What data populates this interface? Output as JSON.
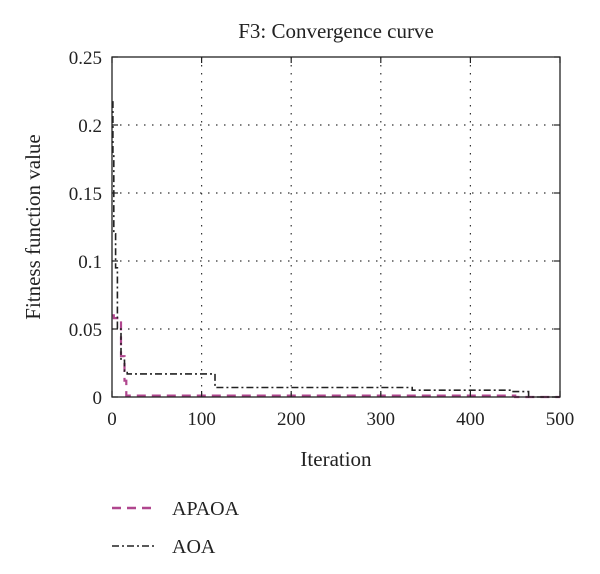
{
  "chart_data": {
    "type": "line",
    "title": "F3: Convergence curve",
    "xlabel": "Iteration",
    "ylabel": "Fitness function value",
    "xlim": [
      0,
      500
    ],
    "ylim": [
      0,
      0.25
    ],
    "xticks": [
      0,
      100,
      200,
      300,
      400,
      500
    ],
    "yticks": [
      0,
      0.05,
      0.1,
      0.15,
      0.2,
      0.25
    ],
    "xtick_labels": [
      "0",
      "100",
      "200",
      "300",
      "400",
      "500"
    ],
    "ytick_labels": [
      "0",
      "0.05",
      "0.1",
      "0.15",
      "0.2",
      "0.25"
    ],
    "grid": true,
    "legend_position": "bottom-left",
    "series": [
      {
        "name": "APAOA",
        "color": "#b0468e",
        "style": "dashed",
        "x": [
          0,
          2,
          2,
          10,
          10,
          14,
          14,
          16,
          16,
          450,
          450,
          500
        ],
        "y": [
          0.06,
          0.06,
          0.058,
          0.058,
          0.03,
          0.03,
          0.012,
          0.012,
          0.001,
          0.001,
          0.0,
          0.0
        ]
      },
      {
        "name": "AOA",
        "color": "#222222",
        "style": "dashdot",
        "x": [
          0,
          1,
          1,
          2,
          2,
          4,
          4,
          6,
          6,
          10,
          10,
          14,
          14,
          17,
          17,
          115,
          115,
          335,
          335,
          445,
          445,
          465,
          465,
          500
        ],
        "y": [
          0.217,
          0.217,
          0.18,
          0.18,
          0.12,
          0.12,
          0.095,
          0.095,
          0.05,
          0.05,
          0.027,
          0.027,
          0.019,
          0.019,
          0.017,
          0.017,
          0.007,
          0.007,
          0.005,
          0.005,
          0.004,
          0.004,
          0.0,
          0.0
        ]
      }
    ]
  }
}
